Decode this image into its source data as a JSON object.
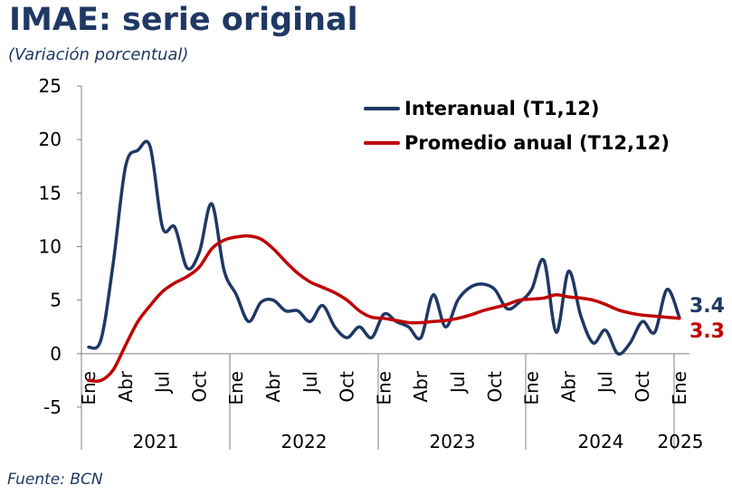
{
  "title": "IMAE: serie original",
  "subtitle": "(Variación porcentual)",
  "source": "Fuente: BCN",
  "chart_data": {
    "type": "line",
    "ylim": [
      -5,
      25
    ],
    "yticks": [
      "25",
      "20",
      "15",
      "10",
      "5",
      "0",
      "-5"
    ],
    "month_tick_labels": [
      "Ene",
      "Abr",
      "Jul",
      "Oct",
      "Ene",
      "Abr",
      "Jul",
      "Oct",
      "Ene",
      "Abr",
      "Jul",
      "Oct",
      "Ene",
      "Abr",
      "Jul",
      "Oct",
      "Ene"
    ],
    "years": [
      "2021",
      "2022",
      "2023",
      "2024",
      "2025"
    ],
    "x_start": "2021-01",
    "legend_position": "top-right",
    "series": [
      {
        "name": "Interanual (T1,12)",
        "color": "#1f3864",
        "end_label": "3.4",
        "values": [
          0.6,
          1.3,
          8.5,
          17.5,
          19.0,
          19.3,
          11.8,
          11.8,
          8.0,
          9.5,
          14.0,
          7.8,
          5.5,
          3.0,
          4.8,
          5.0,
          4.0,
          4.0,
          3.0,
          4.5,
          2.5,
          1.5,
          2.5,
          1.5,
          3.7,
          3.0,
          2.5,
          1.5,
          5.5,
          2.5,
          5.0,
          6.2,
          6.5,
          6.0,
          4.2,
          4.8,
          6.0,
          8.7,
          2.0,
          7.7,
          3.5,
          1.0,
          2.2,
          0.0,
          1.0,
          3.0,
          2.0,
          6.0,
          3.4
        ]
      },
      {
        "name": "Promedio anual (T12,12)",
        "color": "#c00000",
        "end_label": "3.3",
        "values": [
          -2.5,
          -2.5,
          -1.5,
          0.8,
          3.0,
          4.5,
          5.8,
          6.6,
          7.2,
          8.1,
          9.8,
          10.6,
          10.9,
          11.0,
          10.7,
          9.8,
          8.6,
          7.5,
          6.7,
          6.2,
          5.7,
          5.0,
          4.0,
          3.4,
          3.3,
          3.1,
          2.9,
          2.9,
          3.0,
          3.1,
          3.3,
          3.6,
          4.0,
          4.3,
          4.6,
          5.0,
          5.1,
          5.2,
          5.5,
          5.3,
          5.2,
          5.0,
          4.6,
          4.1,
          3.8,
          3.6,
          3.5,
          3.4,
          3.3
        ]
      }
    ]
  }
}
